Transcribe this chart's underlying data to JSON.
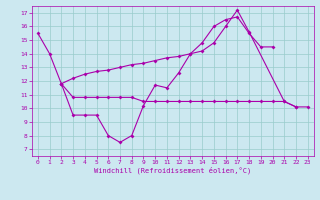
{
  "xlabel": "Windchill (Refroidissement éolien,°C)",
  "bg_color": "#cce8f0",
  "line_color": "#aa00aa",
  "grid_color": "#99cccc",
  "xlim": [
    -0.5,
    23.5
  ],
  "ylim": [
    6.5,
    17.5
  ],
  "yticks": [
    7,
    8,
    9,
    10,
    11,
    12,
    13,
    14,
    15,
    16,
    17
  ],
  "xticks": [
    0,
    1,
    2,
    3,
    4,
    5,
    6,
    7,
    8,
    9,
    10,
    11,
    12,
    13,
    14,
    15,
    16,
    17,
    18,
    19,
    20,
    21,
    22,
    23
  ],
  "line1_x": [
    0,
    1,
    2,
    3,
    4,
    5,
    6,
    7,
    8,
    9,
    10,
    11,
    12,
    13,
    14,
    15,
    16,
    17,
    18,
    21,
    22,
    23
  ],
  "line1_y": [
    15.5,
    14.0,
    11.8,
    9.5,
    9.5,
    9.5,
    8.0,
    7.5,
    8.0,
    10.2,
    11.7,
    11.5,
    12.6,
    14.0,
    14.2,
    14.8,
    16.0,
    17.2,
    15.6,
    10.5,
    10.1,
    10.1
  ],
  "line2_x": [
    2,
    3,
    4,
    5,
    6,
    7,
    8,
    9,
    10,
    11,
    12,
    13,
    14,
    15,
    16,
    17,
    18,
    19,
    20,
    21,
    22
  ],
  "line2_y": [
    11.8,
    10.8,
    10.8,
    10.8,
    10.8,
    10.8,
    10.8,
    10.5,
    10.5,
    10.5,
    10.5,
    10.5,
    10.5,
    10.5,
    10.5,
    10.5,
    10.5,
    10.5,
    10.5,
    10.5,
    10.1
  ],
  "line3_x": [
    2,
    3,
    4,
    5,
    6,
    7,
    8,
    9,
    10,
    11,
    12,
    13,
    14,
    15,
    16,
    17,
    18,
    19,
    20
  ],
  "line3_y": [
    11.8,
    12.2,
    12.5,
    12.7,
    12.8,
    13.0,
    13.2,
    13.3,
    13.5,
    13.7,
    13.8,
    14.0,
    14.8,
    16.0,
    16.5,
    16.7,
    15.5,
    14.5,
    14.5
  ],
  "tick_fontsize": 4.5,
  "xlabel_fontsize": 5.0,
  "linewidth": 0.8,
  "markersize": 2.0
}
